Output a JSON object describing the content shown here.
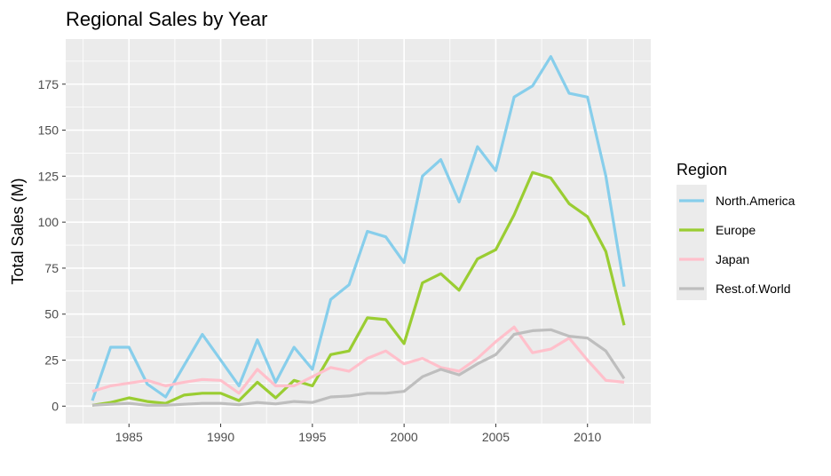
{
  "chart_data": {
    "type": "line",
    "title": "Regional Sales by Year",
    "xlabel": "",
    "ylabel": "Total Sales (M)",
    "xlim": [
      1981.55,
      2013.45
    ],
    "ylim": [
      -9.5,
      199.5
    ],
    "x_ticks": [
      1985,
      1990,
      1995,
      2000,
      2005,
      2010
    ],
    "y_ticks": [
      0,
      25,
      50,
      75,
      100,
      125,
      150,
      175
    ],
    "grid": true,
    "panel_background": "#ebebeb",
    "legend": {
      "title": "Region",
      "position": "right"
    },
    "x": [
      1983,
      1984,
      1985,
      1986,
      1987,
      1988,
      1989,
      1990,
      1991,
      1992,
      1993,
      1994,
      1995,
      1996,
      1997,
      1998,
      1999,
      2000,
      2001,
      2002,
      2003,
      2004,
      2005,
      2006,
      2007,
      2008,
      2009,
      2010,
      2011,
      2012
    ],
    "series": [
      {
        "name": "North.America",
        "color": "#87ceeb",
        "values": [
          3,
          32,
          32,
          12,
          5,
          22,
          39,
          25,
          11,
          36,
          13,
          32,
          20,
          58,
          66,
          95,
          92,
          78,
          125,
          134,
          111,
          141,
          128,
          168,
          174,
          190,
          170,
          168,
          125,
          65
        ]
      },
      {
        "name": "Europe",
        "color": "#9acd32",
        "values": [
          0.5,
          2,
          4.5,
          2.5,
          1.5,
          6,
          7,
          7,
          3,
          13,
          4.5,
          14,
          11,
          28,
          30,
          48,
          47,
          34,
          67,
          72,
          63,
          80,
          85,
          104,
          127,
          124,
          110,
          103,
          84,
          44
        ]
      },
      {
        "name": "Japan",
        "color": "#ffc0cb",
        "values": [
          8,
          11,
          12.5,
          14,
          11,
          13,
          14.5,
          14,
          7,
          20,
          11,
          11,
          16,
          21,
          19,
          26,
          30,
          23,
          26,
          21,
          19,
          26,
          35,
          43,
          29,
          31,
          37,
          25,
          14,
          13
        ]
      },
      {
        "name": "Rest.of.World",
        "color": "#bebebe",
        "values": [
          0.5,
          1,
          1.5,
          0.5,
          0.5,
          1,
          1.5,
          1.5,
          0.8,
          2,
          1.2,
          2.5,
          2,
          5,
          5.5,
          7,
          7,
          8,
          16,
          20,
          17,
          23,
          28,
          39,
          41,
          41.5,
          38,
          37,
          30,
          15
        ]
      }
    ]
  }
}
